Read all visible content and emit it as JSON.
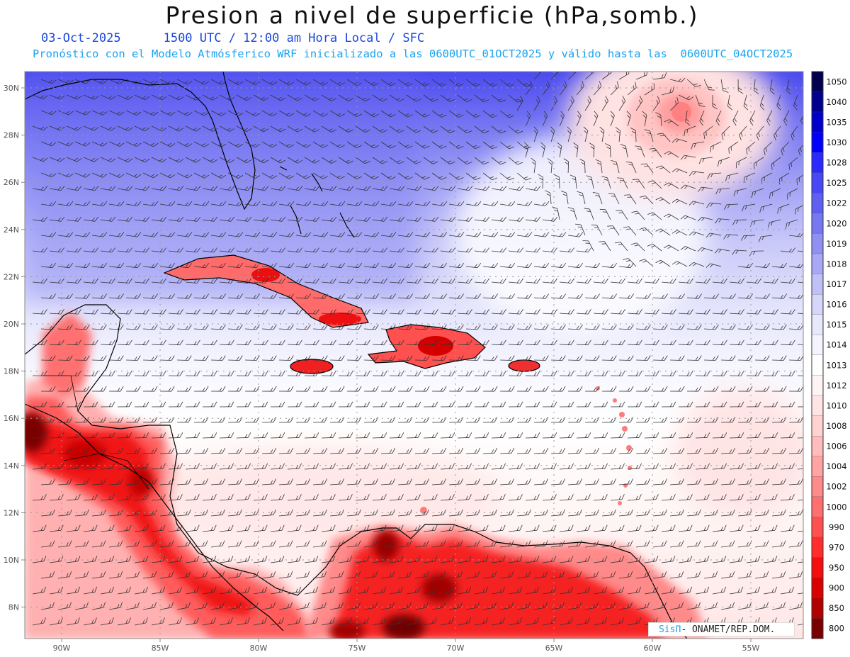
{
  "title": "Presion a nivel de superficie (hPa,somb.)",
  "date": "03-Oct-2025",
  "time_line": "1500 UTC / 12:00 am Hora Local / SFC",
  "forecast_line": "Pronóstico con el Modelo Atmósferico WRF inicializado a las 0600UTC_01OCT2025 y válido hasta las  0600UTC_04OCT2025",
  "credit": {
    "brand": "SisΠ",
    "text": "- ONAMET/REP.DOM."
  },
  "lat_labels": [
    "30N",
    "28N",
    "26N",
    "24N",
    "22N",
    "20N",
    "18N",
    "16N",
    "14N",
    "12N",
    "10N",
    "8N"
  ],
  "lon_labels": [
    "90W",
    "85W",
    "80W",
    "75W",
    "70W",
    "65W",
    "60W",
    "55W"
  ],
  "colorbar": {
    "levels": [
      "1050",
      "1040",
      "1035",
      "1030",
      "1028",
      "1025",
      "1022",
      "1020",
      "1019",
      "1018",
      "1017",
      "1016",
      "1015",
      "1014",
      "1013",
      "1012",
      "1010",
      "1008",
      "1006",
      "1004",
      "1002",
      "1000",
      "990",
      "970",
      "950",
      "900",
      "850",
      "800"
    ],
    "colors": [
      "#00004f",
      "#00008f",
      "#0000c8",
      "#0000ff",
      "#2a2aff",
      "#4747f5",
      "#5f5ff2",
      "#7777f2",
      "#9090f4",
      "#a8a8f6",
      "#c0c0f8",
      "#d6d6fa",
      "#e8e8fc",
      "#f4f4fe",
      "#ffffff",
      "#fff4f4",
      "#ffe4e4",
      "#ffd2d2",
      "#ffbcbc",
      "#ffa3a3",
      "#ff8a8a",
      "#ff6f6f",
      "#ff5050",
      "#ff2d2d",
      "#f40e0e",
      "#d90000",
      "#b00000",
      "#7a0000"
    ]
  }
}
